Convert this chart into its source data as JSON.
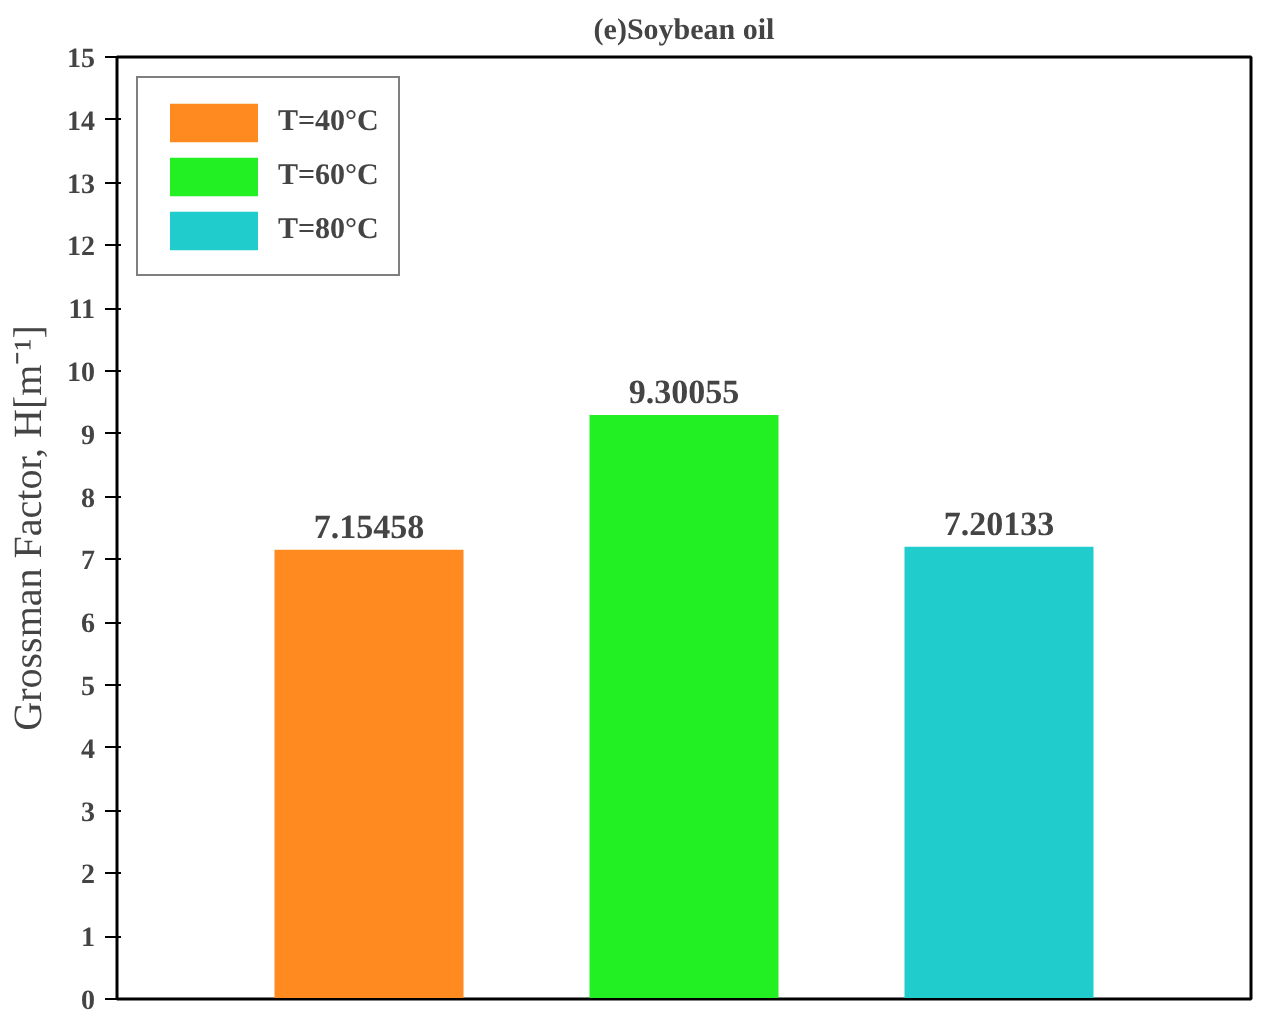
{
  "chart_data": {
    "type": "bar",
    "title": "(e)Soybean oil",
    "ylabel": "Grossman Factor, H[m⁻¹]",
    "categories": [
      null,
      null,
      null
    ],
    "series": [
      {
        "name": "T=40°C",
        "color": "#ff8a1f",
        "values": [
          7.15458,
          null,
          null
        ]
      },
      {
        "name": "T=60°C",
        "color": "#22f022",
        "values": [
          null,
          9.30055,
          null
        ]
      },
      {
        "name": "T=80°C",
        "color": "#20cccc",
        "values": [
          null,
          null,
          7.20133
        ]
      }
    ],
    "ylim": [
      0,
      15
    ],
    "yticks": [
      0,
      1,
      2,
      3,
      4,
      5,
      6,
      7,
      8,
      9,
      10,
      11,
      12,
      13,
      14,
      15
    ],
    "data_labels": true,
    "legend": "top left",
    "grid": false
  }
}
